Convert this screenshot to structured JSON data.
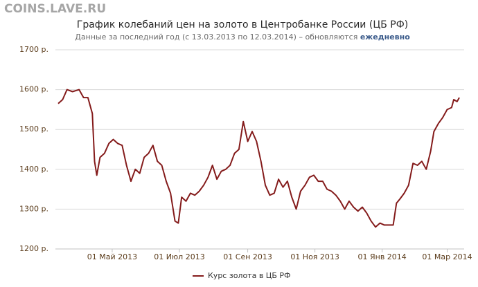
{
  "watermark": "COINS.LAVE.RU",
  "chart_data": {
    "type": "line",
    "title": "График колебаний цен на золото в Центробанке России (ЦБ РФ)",
    "subtitle": [
      "Данные за последний год (с 13.03.2013 по 12.03.2014) – обновляются",
      "ежедневно"
    ],
    "x": [
      "2013-03-13",
      "2013-03-17",
      "2013-03-21",
      "2013-03-26",
      "2013-04-01",
      "2013-04-05",
      "2013-04-09",
      "2013-04-13",
      "2013-04-15",
      "2013-04-17",
      "2013-04-20",
      "2013-04-24",
      "2013-04-28",
      "2013-05-02",
      "2013-05-06",
      "2013-05-10",
      "2013-05-14",
      "2013-05-18",
      "2013-05-22",
      "2013-05-26",
      "2013-05-30",
      "2013-06-03",
      "2013-06-07",
      "2013-06-11",
      "2013-06-15",
      "2013-06-19",
      "2013-06-23",
      "2013-06-27",
      "2013-06-30",
      "2013-07-03",
      "2013-07-07",
      "2013-07-11",
      "2013-07-15",
      "2013-07-19",
      "2013-07-23",
      "2013-07-27",
      "2013-07-31",
      "2013-08-04",
      "2013-08-08",
      "2013-08-12",
      "2013-08-16",
      "2013-08-20",
      "2013-08-24",
      "2013-08-28",
      "2013-09-01",
      "2013-09-05",
      "2013-09-09",
      "2013-09-13",
      "2013-09-17",
      "2013-09-21",
      "2013-09-25",
      "2013-09-29",
      "2013-10-03",
      "2013-10-07",
      "2013-10-11",
      "2013-10-15",
      "2013-10-19",
      "2013-10-23",
      "2013-10-27",
      "2013-10-31",
      "2013-11-04",
      "2013-11-08",
      "2013-11-12",
      "2013-11-16",
      "2013-11-20",
      "2013-11-24",
      "2013-11-28",
      "2013-12-02",
      "2013-12-06",
      "2013-12-10",
      "2013-12-14",
      "2013-12-18",
      "2013-12-22",
      "2013-12-26",
      "2013-12-30",
      "2014-01-03",
      "2014-01-07",
      "2014-01-11",
      "2014-01-14",
      "2014-01-17",
      "2014-01-21",
      "2014-01-25",
      "2014-01-29",
      "2014-02-02",
      "2014-02-06",
      "2014-02-10",
      "2014-02-14",
      "2014-02-17",
      "2014-02-21",
      "2014-02-25",
      "2014-03-01",
      "2014-03-05",
      "2014-03-07",
      "2014-03-10",
      "2014-03-12"
    ],
    "series": [
      {
        "name": "Курс золота в ЦБ РФ",
        "color": "#841b1b",
        "values": [
          1565,
          1575,
          1600,
          1595,
          1600,
          1580,
          1580,
          1540,
          1420,
          1385,
          1430,
          1440,
          1465,
          1475,
          1465,
          1460,
          1410,
          1370,
          1400,
          1390,
          1430,
          1440,
          1460,
          1420,
          1410,
          1370,
          1340,
          1270,
          1265,
          1330,
          1320,
          1340,
          1335,
          1345,
          1360,
          1380,
          1410,
          1375,
          1395,
          1400,
          1410,
          1440,
          1450,
          1520,
          1470,
          1495,
          1470,
          1420,
          1360,
          1335,
          1340,
          1375,
          1355,
          1370,
          1330,
          1300,
          1345,
          1360,
          1380,
          1385,
          1370,
          1370,
          1350,
          1345,
          1335,
          1320,
          1300,
          1320,
          1305,
          1295,
          1305,
          1290,
          1270,
          1255,
          1265,
          1260,
          1260,
          1260,
          1315,
          1325,
          1340,
          1360,
          1415,
          1410,
          1420,
          1400,
          1445,
          1495,
          1515,
          1530,
          1550,
          1555,
          1575,
          1570,
          1580
        ]
      }
    ],
    "xlim": [
      "2013-03-13",
      "2014-03-12"
    ],
    "xticks": [
      {
        "value": "2013-05-01",
        "label": "01 Май 2013"
      },
      {
        "value": "2013-07-01",
        "label": "01 Июл 2013"
      },
      {
        "value": "2013-09-01",
        "label": "01 Сен 2013"
      },
      {
        "value": "2013-11-01",
        "label": "01 Ноя 2013"
      },
      {
        "value": "2014-01-01",
        "label": "01 Янв 2014"
      },
      {
        "value": "2014-03-01",
        "label": "01 Мар 2014"
      }
    ],
    "ylim": [
      1200,
      1700
    ],
    "yticks": [
      {
        "value": 1200,
        "label": "1200 р."
      },
      {
        "value": 1300,
        "label": "1300 р."
      },
      {
        "value": 1400,
        "label": "1400 р."
      },
      {
        "value": 1500,
        "label": "1500 р."
      },
      {
        "value": 1600,
        "label": "1600 р."
      },
      {
        "value": 1700,
        "label": "1700 р."
      }
    ],
    "grid": true,
    "legend": "bottom"
  }
}
